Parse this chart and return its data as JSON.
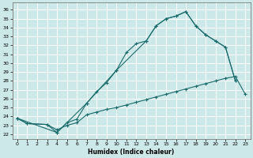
{
  "xlabel": "Humidex (Indice chaleur)",
  "bg_color": "#cde8e8",
  "grid_color": "#b0d4d4",
  "line_color": "#1a6b6b",
  "xlim": [
    -0.5,
    23.5
  ],
  "ylim": [
    21.5,
    36.8
  ],
  "xticks": [
    0,
    1,
    2,
    3,
    4,
    5,
    6,
    7,
    8,
    9,
    10,
    11,
    12,
    13,
    14,
    15,
    16,
    17,
    18,
    19,
    20,
    21,
    22,
    23
  ],
  "yticks": [
    22,
    23,
    24,
    25,
    26,
    27,
    28,
    29,
    30,
    31,
    32,
    33,
    34,
    35,
    36
  ],
  "curve1_x": [
    0,
    1,
    3,
    4,
    5,
    6,
    7,
    8,
    9,
    10,
    11,
    12,
    13,
    14,
    15,
    16,
    17,
    18,
    19,
    20,
    21,
    22
  ],
  "curve1_y": [
    23.8,
    23.2,
    23.1,
    22.2,
    23.3,
    23.7,
    25.5,
    26.8,
    27.8,
    29.2,
    31.2,
    32.2,
    32.5,
    34.2,
    35.0,
    35.3,
    35.8,
    34.2,
    33.2,
    32.5,
    31.8,
    28.0
  ],
  "curve2_x": [
    0,
    4,
    7,
    10,
    13,
    14,
    15,
    16,
    17,
    18,
    19,
    20,
    21,
    22
  ],
  "curve2_y": [
    23.8,
    22.2,
    25.5,
    29.2,
    32.5,
    34.2,
    35.0,
    35.3,
    35.8,
    34.2,
    33.2,
    32.5,
    31.8,
    28.0
  ],
  "curve3_x": [
    0,
    1,
    3,
    4,
    5,
    6,
    7,
    8,
    9,
    10,
    11,
    12,
    13,
    14,
    15,
    16,
    17,
    18,
    19,
    20,
    21,
    22,
    23
  ],
  "curve3_y": [
    23.8,
    23.2,
    23.1,
    22.5,
    23.0,
    23.3,
    24.2,
    24.5,
    24.8,
    25.0,
    25.3,
    25.6,
    25.9,
    26.2,
    26.5,
    26.8,
    27.1,
    27.4,
    27.7,
    28.0,
    28.3,
    28.5,
    26.5
  ]
}
